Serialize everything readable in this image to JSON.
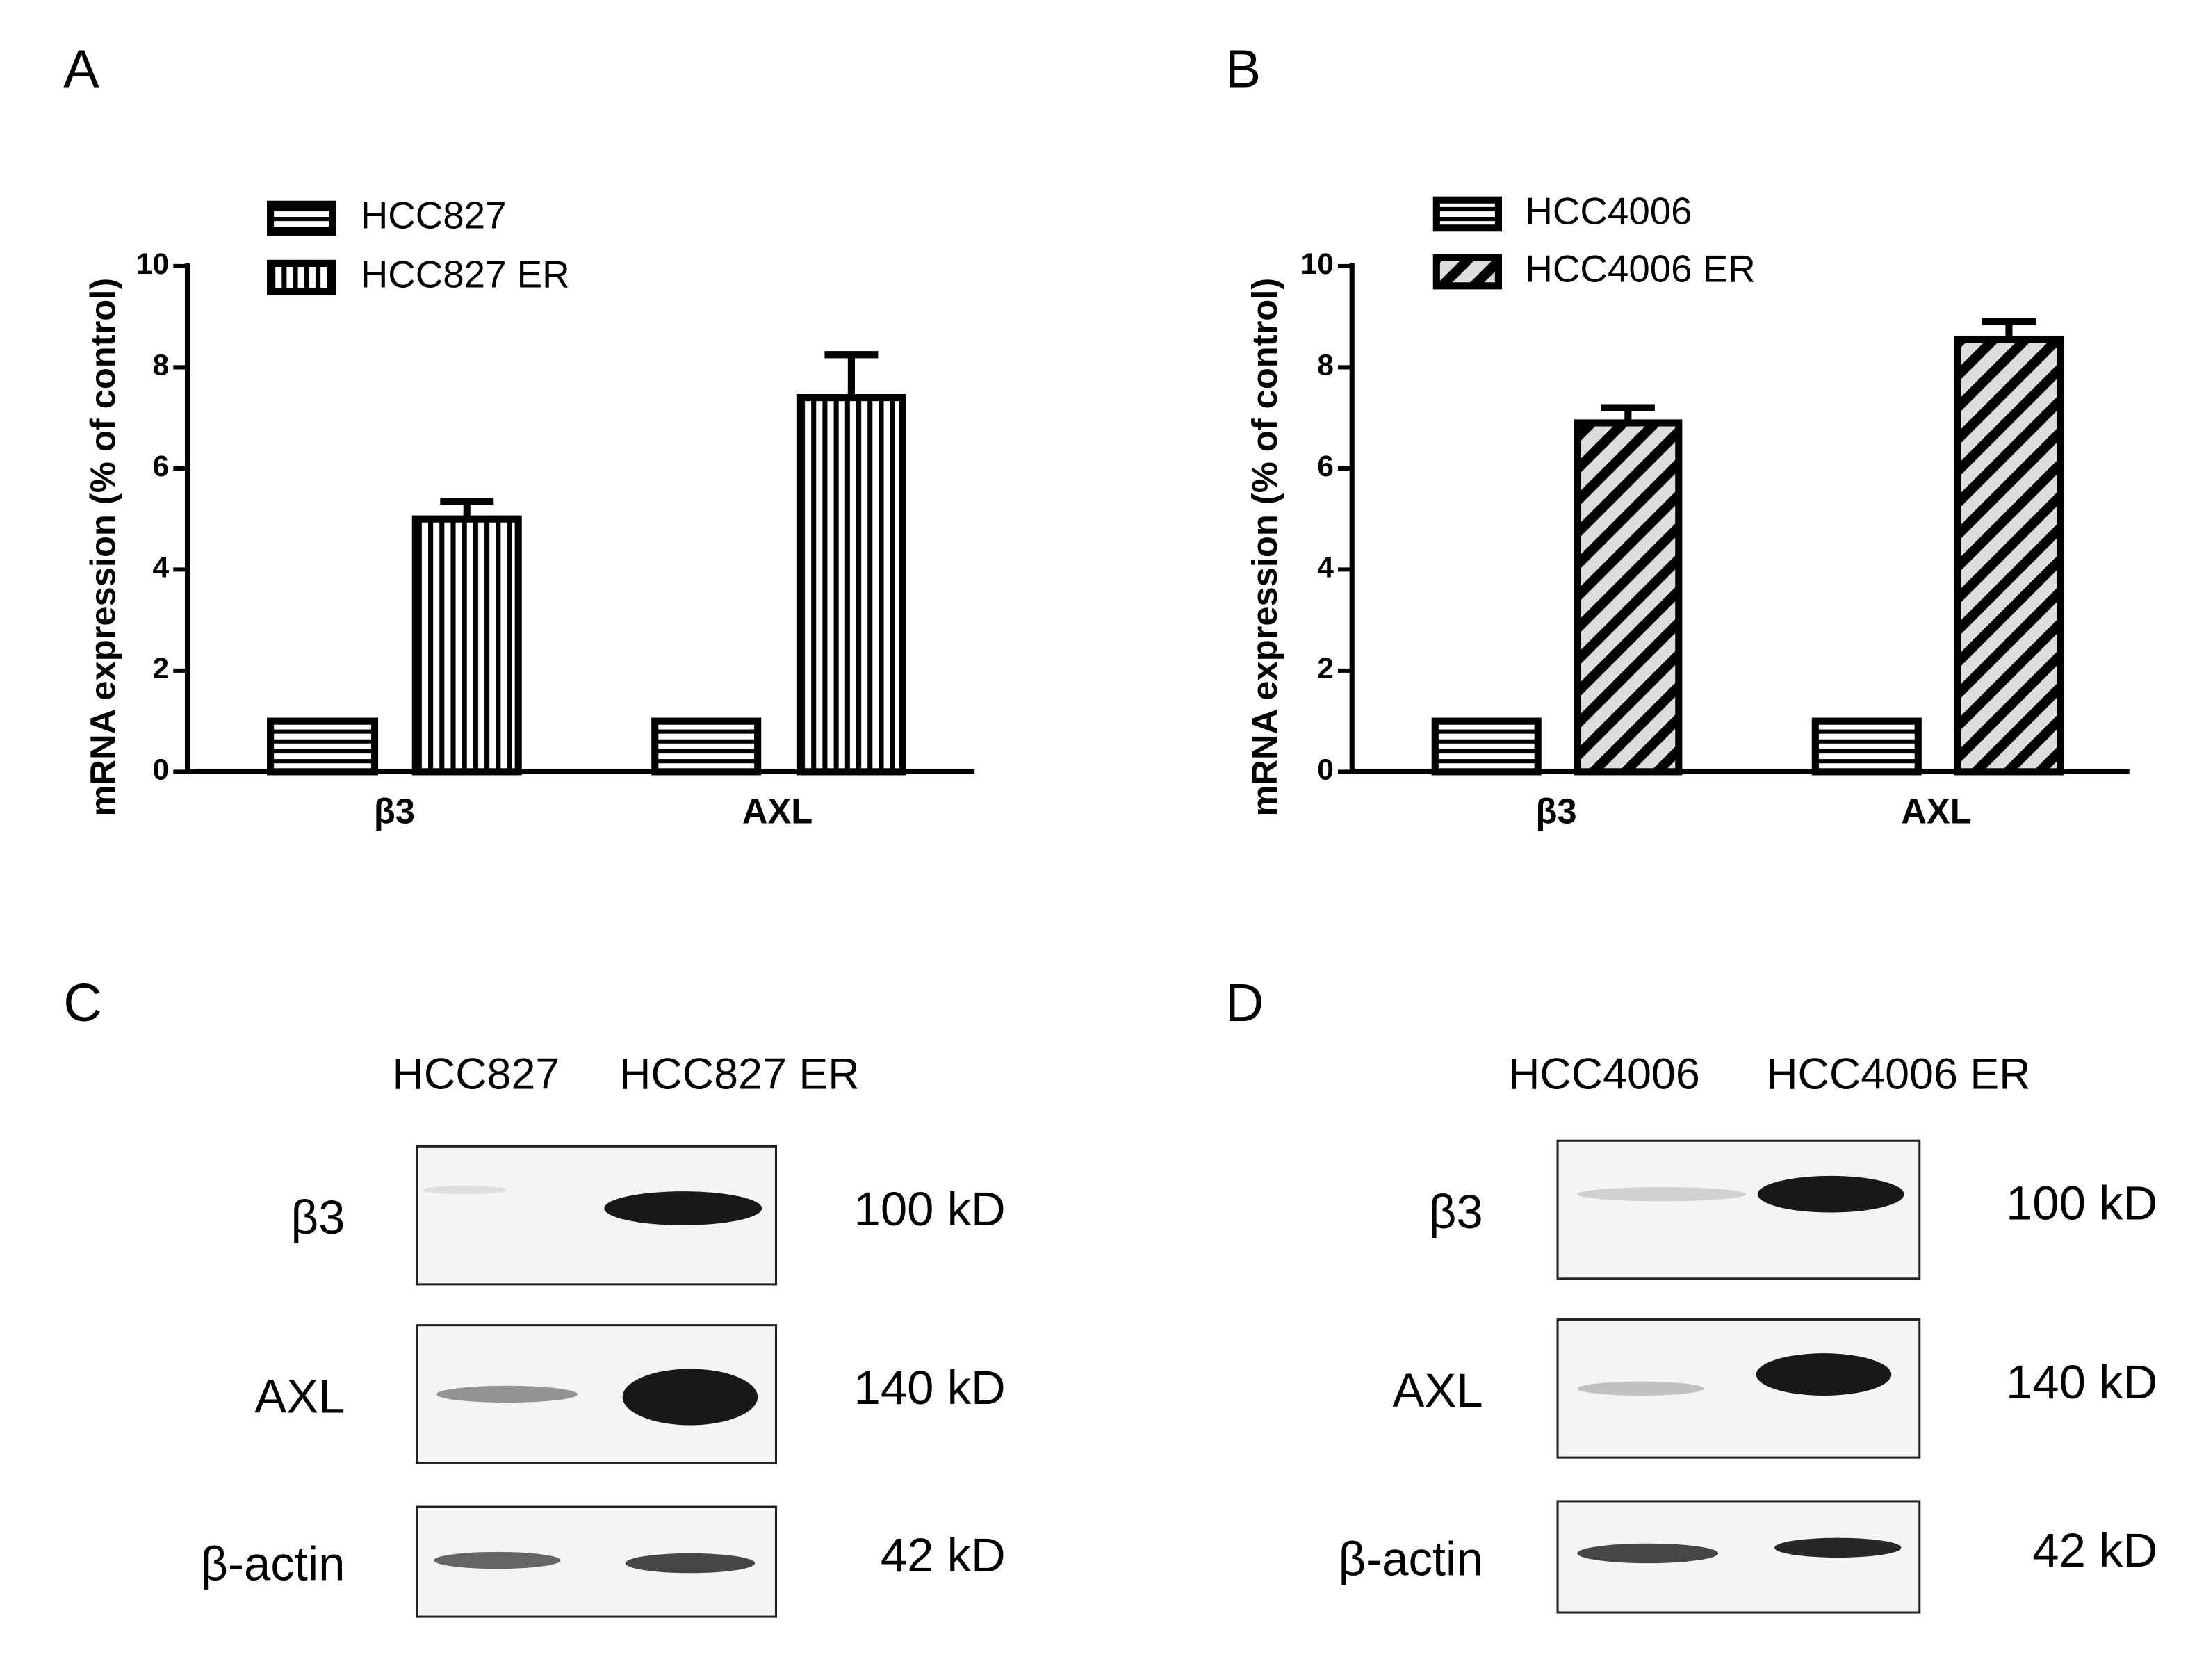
{
  "chart_data": [
    {
      "type": "bar",
      "panel": "A",
      "y_label": "mRNA expression (% of control)",
      "categories": [
        "β3",
        "AXL"
      ],
      "series": [
        {
          "name": "HCC827",
          "color": "#000000",
          "pattern": "horizontal",
          "values": [
            1,
            1
          ]
        },
        {
          "name": "HCC827 ER",
          "color": "#000000",
          "pattern": "vertical",
          "values": [
            5.0,
            7.4
          ],
          "errors": [
            0.35,
            0.85
          ]
        }
      ],
      "ylim": [
        0,
        10
      ],
      "yticks": [
        0,
        2,
        4,
        6,
        8,
        10
      ]
    },
    {
      "type": "bar",
      "panel": "B",
      "y_label": "mRNA expression (% of control)",
      "categories": [
        "β3",
        "AXL"
      ],
      "series": [
        {
          "name": "HCC4006",
          "color": "#000000",
          "pattern": "horizontal",
          "values": [
            1,
            1
          ]
        },
        {
          "name": "HCC4006 ER",
          "color": "#000000",
          "pattern": "diagonal",
          "values": [
            6.9,
            8.55
          ],
          "errors": [
            0.3,
            0.35
          ]
        }
      ],
      "ylim": [
        0,
        10
      ],
      "yticks": [
        0,
        2,
        4,
        6,
        8,
        10
      ]
    }
  ],
  "blots": [
    {
      "panel": "C",
      "lanes": [
        "HCC827",
        "HCC827 ER"
      ],
      "rows": [
        {
          "label": "β3",
          "size": "100 kD"
        },
        {
          "label": "AXL",
          "size": "140 kD"
        },
        {
          "label": "β-actin",
          "size": "42 kD"
        }
      ]
    },
    {
      "panel": "D",
      "lanes": [
        "HCC4006",
        "HCC4006 ER"
      ],
      "rows": [
        {
          "label": "β3",
          "size": "100 kD"
        },
        {
          "label": "AXL",
          "size": "140 kD"
        },
        {
          "label": "β-actin",
          "size": "42 kD"
        }
      ]
    }
  ]
}
